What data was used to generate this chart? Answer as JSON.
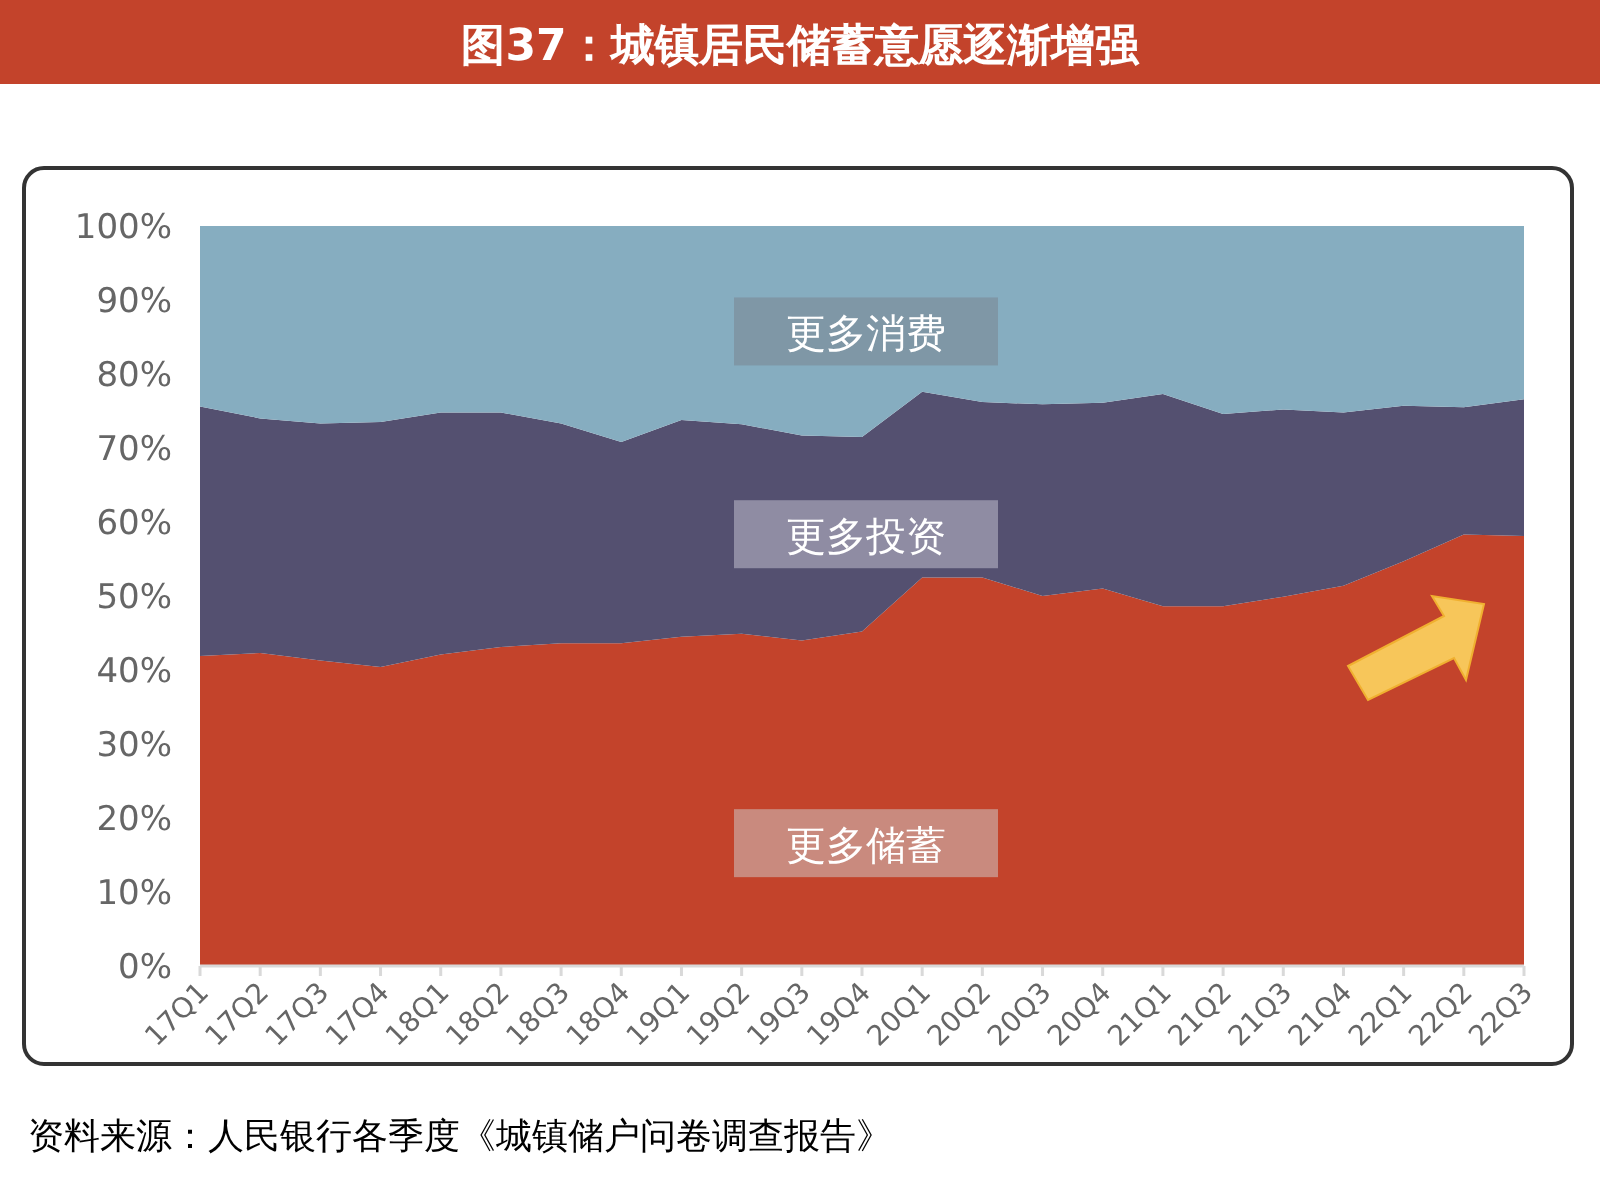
{
  "chart_data": {
    "type": "area",
    "stacked": true,
    "title": "图37：城镇居民储蓄意愿逐渐增强",
    "categories": [
      "17Q1",
      "17Q2",
      "17Q3",
      "17Q4",
      "18Q1",
      "18Q2",
      "18Q3",
      "18Q4",
      "19Q1",
      "19Q2",
      "19Q3",
      "19Q4",
      "20Q1",
      "20Q2",
      "20Q3",
      "20Q4",
      "21Q1",
      "21Q2",
      "21Q3",
      "21Q4",
      "22Q1",
      "22Q2",
      "22Q3"
    ],
    "series": [
      {
        "name": "更多储蓄",
        "color": "#c3432b",
        "values": [
          41.9,
          42.3,
          41.3,
          40.4,
          42.1,
          43.1,
          43.6,
          43.6,
          44.5,
          44.9,
          44.0,
          45.2,
          52.5,
          52.5,
          50.0,
          51.0,
          48.6,
          48.6,
          49.9,
          51.4,
          54.7,
          58.3,
          58.1
        ]
      },
      {
        "name": "更多投资",
        "color": "#545070",
        "values": [
          33.7,
          31.7,
          32.0,
          33.1,
          32.7,
          31.7,
          29.7,
          27.2,
          29.3,
          28.3,
          27.7,
          26.3,
          25.1,
          23.7,
          25.9,
          25.1,
          28.7,
          26.0,
          25.3,
          23.4,
          21.0,
          17.2,
          18.5
        ]
      },
      {
        "name": "更多消费",
        "color": "#86adc0",
        "values": [
          24.4,
          26.0,
          26.7,
          26.5,
          25.2,
          25.2,
          26.7,
          29.2,
          26.2,
          26.8,
          28.3,
          28.5,
          22.4,
          23.8,
          24.1,
          23.9,
          22.7,
          25.4,
          24.8,
          25.2,
          24.3,
          24.5,
          23.4
        ]
      }
    ],
    "ylim": [
      0,
      100
    ],
    "yticks": [
      {
        "value": 0,
        "label": "0%"
      },
      {
        "value": 10,
        "label": "10%"
      },
      {
        "value": 20,
        "label": "20%"
      },
      {
        "value": 30,
        "label": "30%"
      },
      {
        "value": 40,
        "label": "40%"
      },
      {
        "value": 50,
        "label": "50%"
      },
      {
        "value": 60,
        "label": "60%"
      },
      {
        "value": 70,
        "label": "70%"
      },
      {
        "value": 80,
        "label": "80%"
      },
      {
        "value": 90,
        "label": "90%"
      },
      {
        "value": 100,
        "label": "100%"
      }
    ],
    "annotations": [
      "资料来源：人民银行各季度《城镇储户问卷调查报告》"
    ]
  }
}
